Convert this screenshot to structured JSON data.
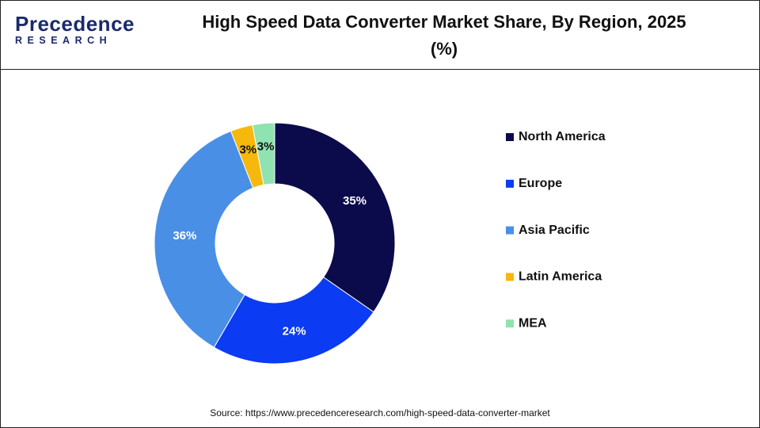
{
  "logo": {
    "name": "Precedence",
    "tagline": "RESEARCH"
  },
  "chart_data": {
    "type": "donut",
    "title": "High Speed Data Converter Market Share, By Region, 2025 (%)",
    "categories": [
      "North America",
      "Europe",
      "Asia Pacific",
      "Latin America",
      "MEA"
    ],
    "values": [
      35,
      24,
      36,
      3,
      3
    ],
    "value_labels": [
      "35%",
      "24%",
      "36%",
      "3%",
      "3%"
    ],
    "colors": [
      "#0b0b4b",
      "#0b3bf2",
      "#4a8fe6",
      "#f6b80c",
      "#8fe3b1"
    ],
    "legend": "right"
  },
  "source": "Source: https://www.precedenceresearch.com/high-speed-data-converter-market"
}
